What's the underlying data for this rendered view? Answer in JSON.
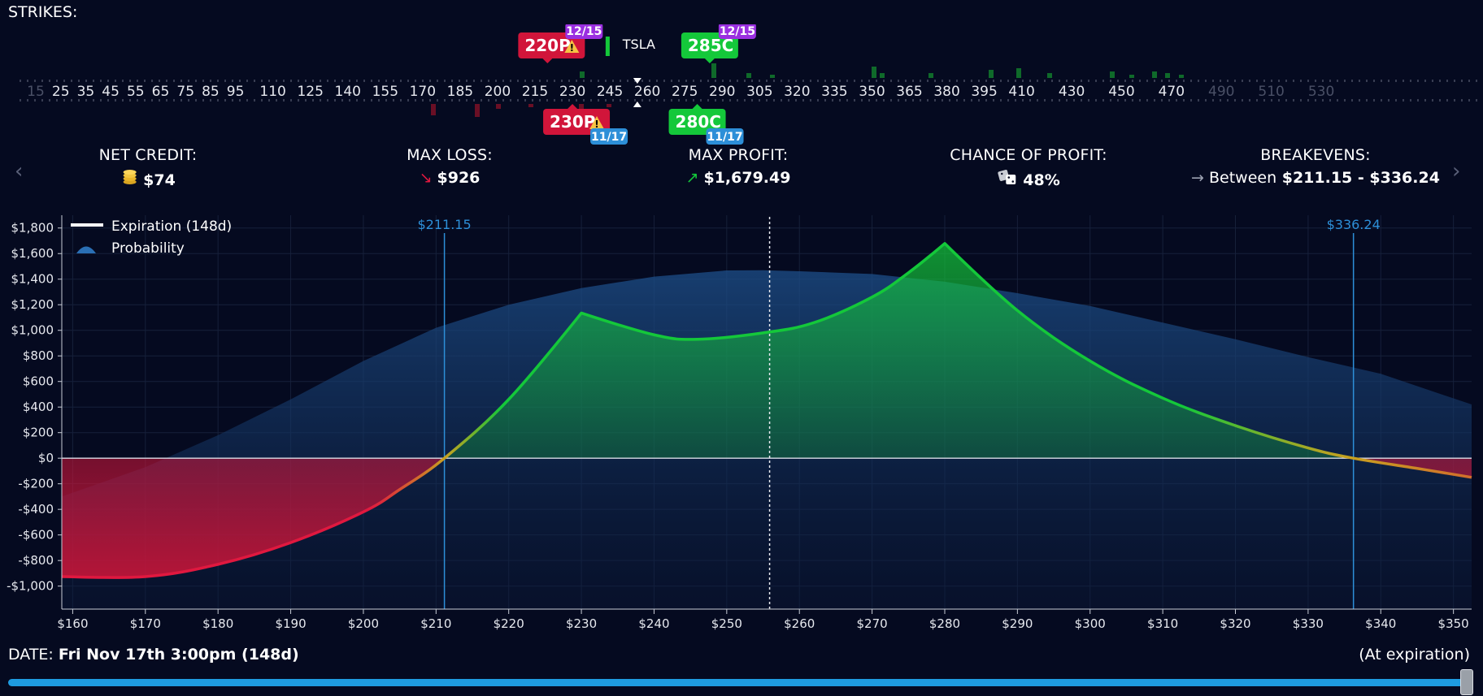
{
  "strikes": {
    "title": "STRIKES:",
    "ticker": "TSLA",
    "ticks": [
      "15",
      "25",
      "35",
      "45",
      "55",
      "65",
      "75",
      "85",
      "95",
      "110",
      "125",
      "140",
      "155",
      "170",
      "185",
      "200",
      "215",
      "230",
      "245",
      "260",
      "275",
      "290",
      "305",
      "320",
      "335",
      "350",
      "365",
      "380",
      "395",
      "410",
      "430",
      "450",
      "470",
      "490",
      "510",
      "530"
    ],
    "faded_ticks": [
      "15",
      "490",
      "510",
      "530"
    ],
    "legs_top": [
      {
        "label": "220P",
        "warn": true,
        "expiry": "12/15",
        "kind": "put",
        "strike": 220
      },
      {
        "label": "285C",
        "warn": false,
        "expiry": "12/15",
        "kind": "call",
        "strike": 285
      }
    ],
    "legs_bottom": [
      {
        "label": "230P",
        "warn": true,
        "expiry": "11/17",
        "kind": "put",
        "strike": 230
      },
      {
        "label": "280C",
        "warn": false,
        "expiry": "11/17",
        "kind": "call",
        "strike": 280
      }
    ],
    "current_price": 256
  },
  "stats": {
    "net_credit": {
      "label": "NET CREDIT:",
      "value": "$74",
      "icon": "coins-icon"
    },
    "max_loss": {
      "label": "MAX LOSS:",
      "value": "$926",
      "icon": "arrow-down-right-icon"
    },
    "max_profit": {
      "label": "MAX PROFIT:",
      "value": "$1,679.49",
      "icon": "arrow-up-right-icon"
    },
    "chance": {
      "label": "CHANCE OF PROFIT:",
      "value": "48%",
      "icon": "dice-icon"
    },
    "breakevens": {
      "label": "BREAKEVENS:",
      "prefix": "Between",
      "value": "$211.15 - $336.24",
      "icon": "arrow-right-icon"
    }
  },
  "legend": {
    "expiration": "Expiration (148d)",
    "probability": "Probability"
  },
  "chart_data": {
    "type": "line",
    "x_ticks": [
      160,
      170,
      180,
      190,
      200,
      210,
      220,
      230,
      240,
      250,
      260,
      270,
      280,
      290,
      300,
      310,
      320,
      330,
      340,
      350
    ],
    "y_ticks": [
      1800,
      1600,
      1400,
      1200,
      1000,
      800,
      600,
      400,
      200,
      0,
      -200,
      -400,
      -600,
      -800,
      -1000
    ],
    "xlim": [
      158.5,
      352.5
    ],
    "ylim": [
      -1180,
      1900
    ],
    "breakevens": [
      {
        "x": 211.15,
        "label": "$211.15"
      },
      {
        "x": 336.24,
        "label": "$336.24"
      }
    ],
    "current_price": 255.9,
    "series": [
      {
        "name": "Expiration (148d)",
        "x": [
          158.5,
          170,
          180,
          190,
          200,
          205,
          211.15,
          220,
          230,
          240,
          246,
          255,
          262,
          270,
          275,
          280,
          290,
          300,
          310,
          320,
          330,
          336.24,
          345,
          352.5
        ],
        "y": [
          -926,
          -926,
          -830,
          -660,
          -420,
          -245,
          0,
          460,
          1135,
          965,
          930,
          980,
          1060,
          1260,
          1450,
          1679,
          1155,
          760,
          470,
          255,
          80,
          0,
          -80,
          -150
        ]
      },
      {
        "name": "Probability",
        "x": [
          158.5,
          170,
          180,
          190,
          200,
          210,
          220,
          230,
          240,
          250,
          255,
          260,
          270,
          280,
          290,
          300,
          310,
          320,
          330,
          340,
          352.5
        ],
        "y": [
          -300,
          -70,
          180,
          460,
          760,
          1020,
          1200,
          1330,
          1420,
          1468,
          1470,
          1462,
          1440,
          1380,
          1290,
          1190,
          1060,
          930,
          790,
          660,
          420
        ]
      }
    ]
  },
  "date": {
    "label": "DATE:",
    "value": "Fri Nov 17th 3:00pm (148d)"
  },
  "at_expiration": "(At expiration)",
  "colors": {
    "profit": "#14c83a",
    "loss": "#d1153a",
    "accent_blue": "#2d8fd8",
    "purple_badge": "#9a2fe0",
    "bg": "#050a20"
  }
}
